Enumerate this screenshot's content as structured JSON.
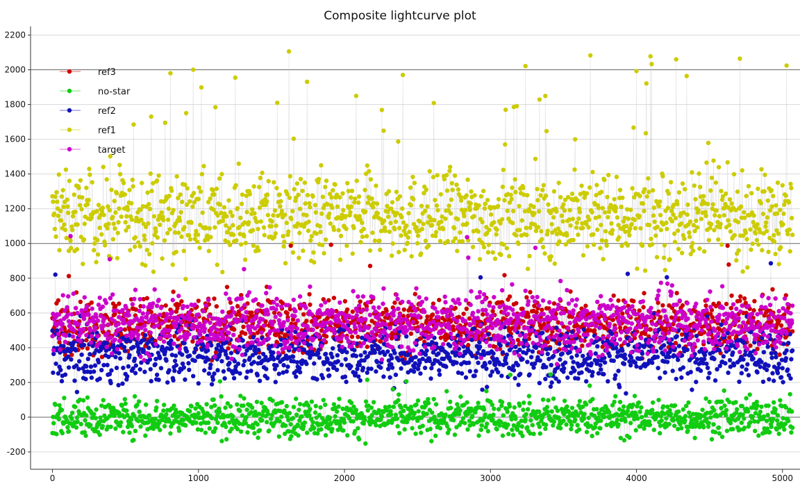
{
  "chart_data": {
    "type": "line",
    "title": "Composite lightcurve plot",
    "xlabel": "",
    "ylabel": "",
    "xlim": [
      -150,
      5120
    ],
    "ylim": [
      -300,
      2250
    ],
    "x_ticks": [
      0,
      1000,
      2000,
      3000,
      4000,
      5000
    ],
    "y_ticks": [
      -200,
      0,
      200,
      400,
      600,
      800,
      1000,
      1200,
      1400,
      1600,
      1800,
      2000,
      2200
    ],
    "grid": true,
    "legend_position": "top-left",
    "legend_order": [
      "ref3",
      "no-star",
      "ref2",
      "ref1",
      "target"
    ],
    "n_points": 5070,
    "series": [
      {
        "name": "ref1",
        "color": "#cccc00",
        "level": 1150,
        "spread": 170,
        "spike_prob": 0.04,
        "spike_max": 2130
      },
      {
        "name": "ref3",
        "color": "#cc0000",
        "level": 530,
        "spread": 110,
        "spike_prob": 0.01,
        "spike_max": 1000
      },
      {
        "name": "ref2",
        "color": "#1111bb",
        "level": 360,
        "spread": 110,
        "spike_prob": 0.01,
        "spike_max": 900
      },
      {
        "name": "target",
        "color": "#cc00cc",
        "level": 540,
        "spread": 120,
        "spike_prob": 0.01,
        "spike_max": 1050
      },
      {
        "name": "no-star",
        "color": "#11cc11",
        "level": 0,
        "spread": 75,
        "spike_prob": 0.01,
        "spike_max": 250
      }
    ]
  }
}
